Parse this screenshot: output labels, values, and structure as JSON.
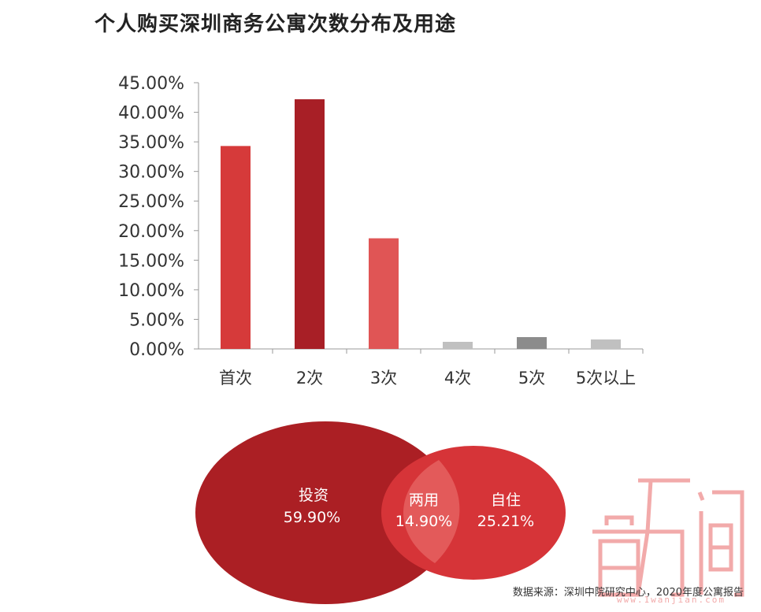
{
  "title": "个人购买深圳商务公寓次数分布及用途",
  "chart_data": [
    {
      "type": "bar",
      "categories": [
        "首次",
        "2次",
        "3次",
        "4次",
        "5次",
        "5次以上"
      ],
      "values": [
        34.3,
        42.2,
        18.7,
        1.2,
        2.0,
        1.6
      ],
      "colors": [
        "#d63a3a",
        "#a81f26",
        "#e05555",
        "#c0c0c0",
        "#8c8c8c",
        "#c0c0c0"
      ],
      "ylim": [
        0,
        45
      ],
      "yticks": [
        "0.00%",
        "5.00%",
        "10.00%",
        "15.00%",
        "20.00%",
        "25.00%",
        "30.00%",
        "35.00%",
        "40.00%",
        "45.00%"
      ],
      "xlabel": "",
      "ylabel": ""
    },
    {
      "type": "venn",
      "sets": [
        {
          "label": "投资",
          "value": "59.90%",
          "color": "#ab1f24"
        },
        {
          "label": "自住",
          "value": "25.21%",
          "color": "#d63438"
        }
      ],
      "intersection": {
        "label": "两用",
        "value": "14.90%",
        "color": "#e35a5a"
      }
    }
  ],
  "source": "数据来源：深圳中院研究中心，2020年度公寓报告",
  "watermark": {
    "glyphs": [
      "官",
      "万",
      "间"
    ],
    "url": "www.1wanjian.com",
    "color": "#f2aaaa"
  }
}
